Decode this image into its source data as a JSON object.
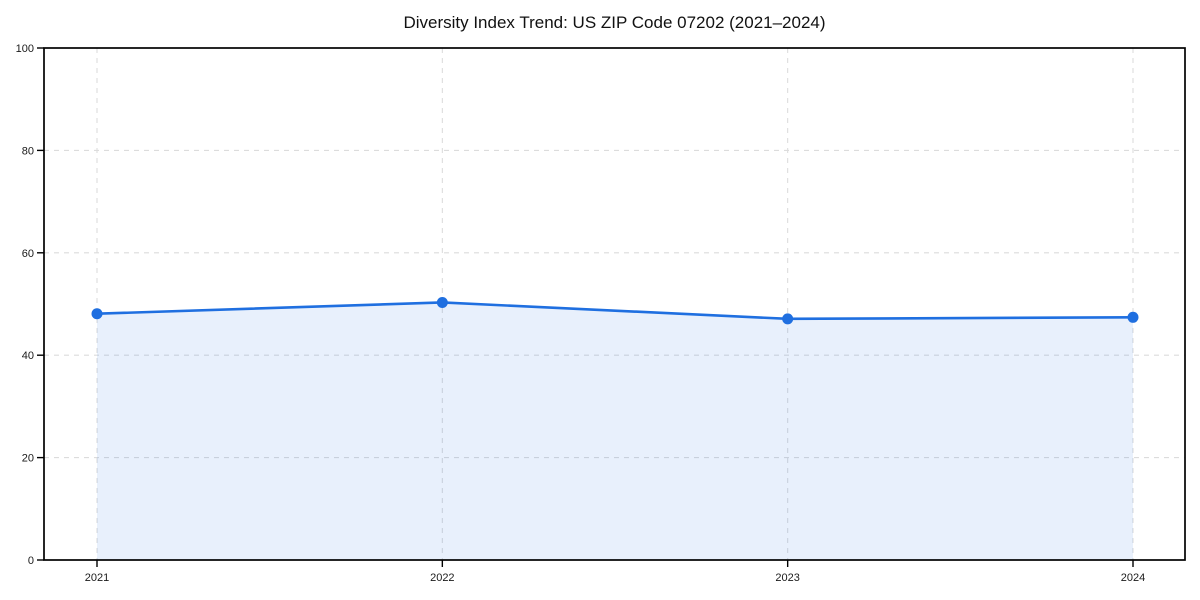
{
  "chart_data": {
    "type": "area",
    "title": "Diversity Index Trend: US ZIP Code 07202 (2021–2024)",
    "categories": [
      "2021",
      "2022",
      "2023",
      "2024"
    ],
    "series": [
      {
        "name": "Diversity Index",
        "values": [
          48.1,
          50.3,
          47.1,
          47.4
        ]
      }
    ],
    "xlabel": "",
    "ylabel": "",
    "ylim": [
      0,
      100
    ],
    "yticks": [
      0,
      20,
      40,
      60,
      80,
      100
    ],
    "grid": "dashed, both axes",
    "legend_position": "none",
    "colors": {
      "line": "#1f6fe0",
      "marker": "#1f6fe0",
      "fill": "rgba(31, 111, 224, 0.10)",
      "grid": "#dcdcdc",
      "spine": "#000000",
      "tick_label": "#1a1a1a",
      "title": "#111111",
      "background": "#ffffff"
    }
  }
}
